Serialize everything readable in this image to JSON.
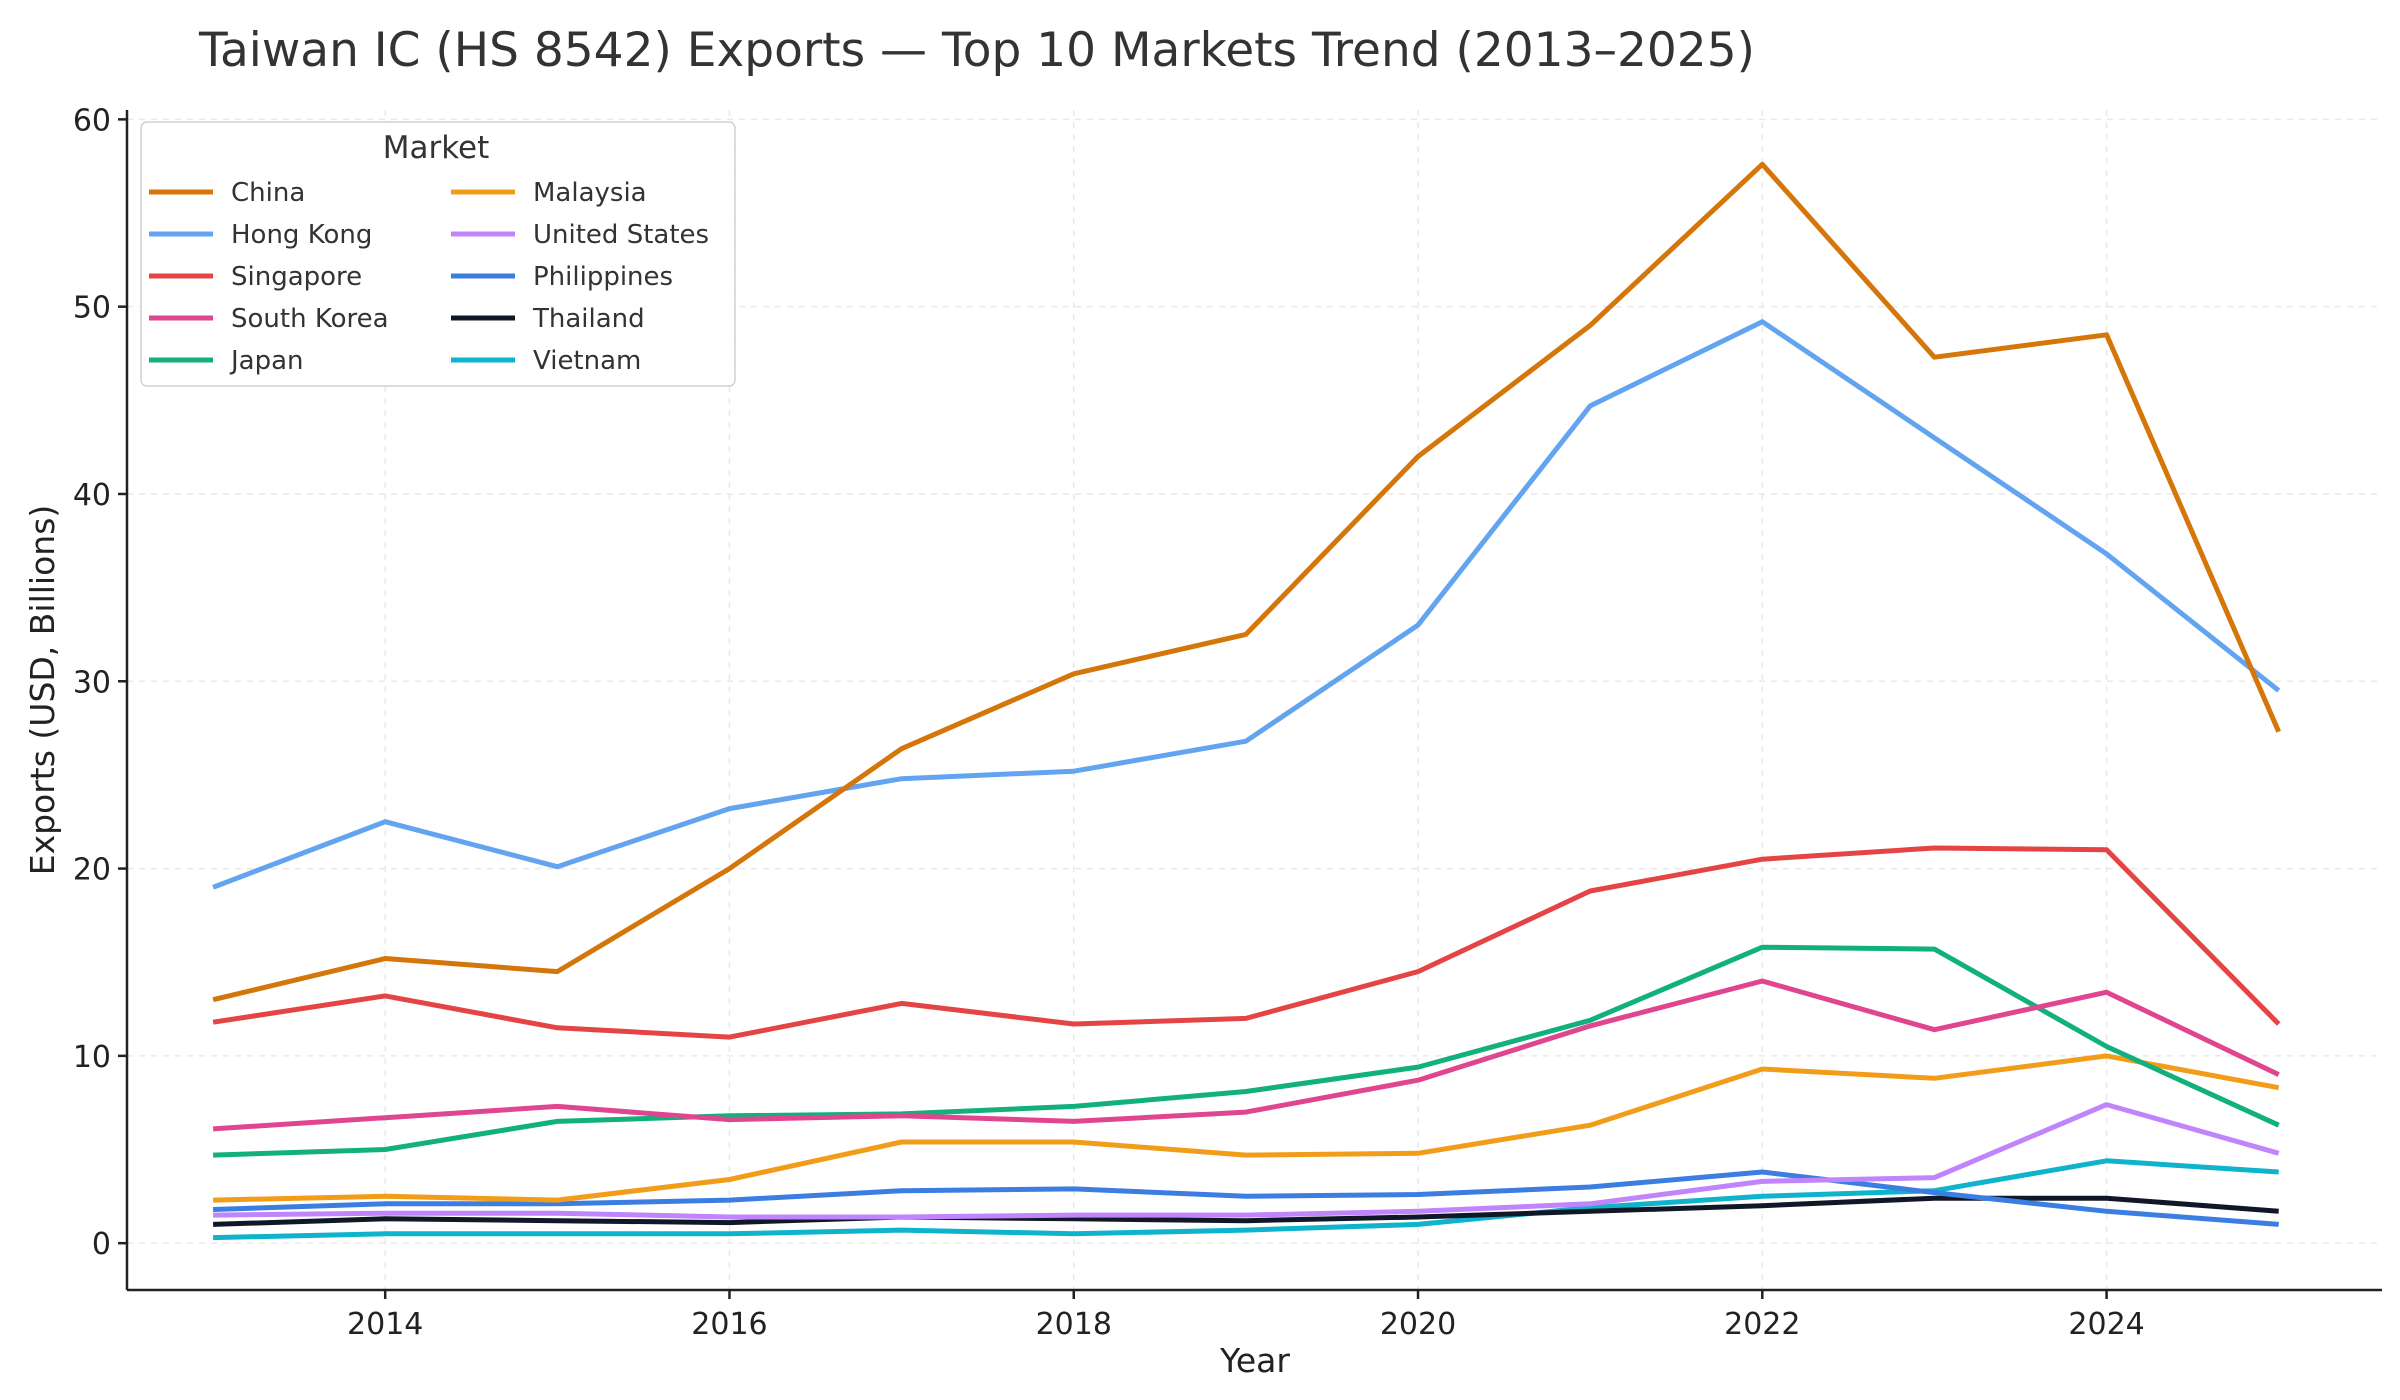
{
  "chart_data": {
    "type": "line",
    "title": "Taiwan IC (HS 8542) Exports — Top 10 Markets Trend (2013–2025)",
    "xlabel": "Year",
    "ylabel": "Exports (USD, Billions)",
    "xlim": [
      2012.5,
      2025.6
    ],
    "ylim": [
      -2.5,
      60.5
    ],
    "xticks": [
      2014,
      2016,
      2018,
      2020,
      2022,
      2024
    ],
    "yticks": [
      0,
      10,
      20,
      30,
      40,
      50,
      60
    ],
    "grid": true,
    "legend": {
      "title": "Market",
      "placement": "top-left",
      "columns": 2
    },
    "x": [
      2013,
      2014,
      2015,
      2016,
      2017,
      2018,
      2019,
      2020,
      2021,
      2022,
      2023,
      2024,
      2025
    ],
    "series": [
      {
        "name": "China",
        "color": "#d4760a",
        "values": [
          13.0,
          15.2,
          14.5,
          20.0,
          26.4,
          30.4,
          32.5,
          42.0,
          49.0,
          57.6,
          47.3,
          48.5,
          27.3
        ]
      },
      {
        "name": "Hong Kong",
        "color": "#63a4f0",
        "values": [
          19.0,
          22.5,
          20.1,
          23.2,
          24.8,
          25.2,
          26.8,
          33.0,
          44.7,
          49.2,
          43.0,
          36.8,
          29.5
        ]
      },
      {
        "name": "Singapore",
        "color": "#e54444",
        "values": [
          11.8,
          13.2,
          11.5,
          11.0,
          12.8,
          11.7,
          12.0,
          14.5,
          18.8,
          20.5,
          21.1,
          21.0,
          11.7
        ]
      },
      {
        "name": "South Korea",
        "color": "#e0468f",
        "values": [
          6.1,
          6.7,
          7.3,
          6.6,
          6.8,
          6.5,
          7.0,
          8.7,
          11.6,
          14.0,
          11.4,
          13.4,
          9.0
        ]
      },
      {
        "name": "Japan",
        "color": "#12b07c",
        "values": [
          4.7,
          5.0,
          6.5,
          6.8,
          6.9,
          7.3,
          8.1,
          9.4,
          11.9,
          15.8,
          15.7,
          10.5,
          6.3
        ]
      },
      {
        "name": "Malaysia",
        "color": "#f19d1a",
        "values": [
          2.3,
          2.5,
          2.3,
          3.4,
          5.4,
          5.4,
          4.7,
          4.8,
          6.3,
          9.3,
          8.8,
          10.0,
          8.3
        ]
      },
      {
        "name": "United States",
        "color": "#c084fc",
        "values": [
          1.5,
          1.6,
          1.6,
          1.4,
          1.4,
          1.5,
          1.5,
          1.7,
          2.1,
          3.3,
          3.5,
          7.4,
          4.8
        ]
      },
      {
        "name": "Philippines",
        "color": "#3b7de0",
        "values": [
          1.8,
          2.1,
          2.1,
          2.3,
          2.8,
          2.9,
          2.5,
          2.6,
          3.0,
          3.8,
          2.7,
          1.7,
          1.0
        ]
      },
      {
        "name": "Thailand",
        "color": "#101828",
        "values": [
          1.0,
          1.3,
          1.2,
          1.1,
          1.4,
          1.3,
          1.2,
          1.4,
          1.7,
          2.0,
          2.4,
          2.4,
          1.7
        ]
      },
      {
        "name": "Vietnam",
        "color": "#0fb3cc",
        "values": [
          0.3,
          0.5,
          0.5,
          0.5,
          0.7,
          0.5,
          0.7,
          1.0,
          1.9,
          2.5,
          2.8,
          4.4,
          3.8
        ]
      }
    ]
  }
}
